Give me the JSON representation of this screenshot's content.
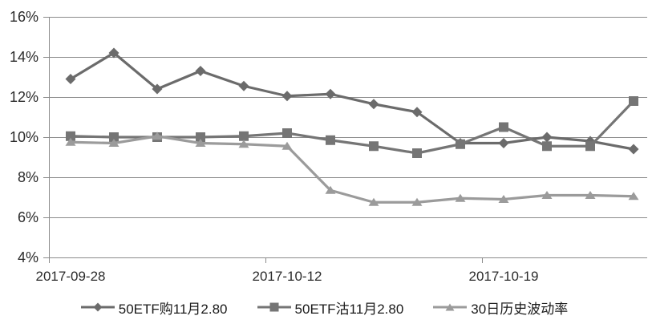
{
  "chart_data": {
    "type": "line",
    "title": "",
    "xlabel": "",
    "ylabel": "",
    "grid": true,
    "legend_position": "bottom",
    "background_color": "#ffffff",
    "axis_color": "#8c8c8c",
    "tick_text_color": "#2b2b2b",
    "ylim": [
      4,
      16
    ],
    "y_ticks_percent": [
      4,
      6,
      8,
      10,
      12,
      14,
      16
    ],
    "y_tick_suffix": "%",
    "n_points": 14,
    "x_tick_labels": [
      "2017-09-28",
      "2017-10-12",
      "2017-10-19"
    ],
    "x_tick_category_index": [
      0,
      5,
      10
    ],
    "series": [
      {
        "name": "50ETF购11月2.80",
        "marker": "diamond",
        "color": "#6b6b6b",
        "values_percent": [
          12.9,
          14.2,
          12.4,
          13.3,
          12.55,
          12.05,
          12.15,
          11.65,
          11.25,
          9.7,
          9.7,
          10.0,
          9.8,
          9.4
        ]
      },
      {
        "name": "50ETF沽11月2.80",
        "marker": "square",
        "color": "#757575",
        "values_percent": [
          10.05,
          10.0,
          10.0,
          10.0,
          10.05,
          10.2,
          9.85,
          9.55,
          9.2,
          9.65,
          10.5,
          9.55,
          9.55,
          11.8
        ]
      },
      {
        "name": "30日历史波动率",
        "marker": "triangle",
        "color": "#9b9b9b",
        "values_percent": [
          9.75,
          9.7,
          10.05,
          9.7,
          9.65,
          9.55,
          7.35,
          6.75,
          6.75,
          6.95,
          6.9,
          7.1,
          7.1,
          7.05
        ]
      }
    ]
  }
}
